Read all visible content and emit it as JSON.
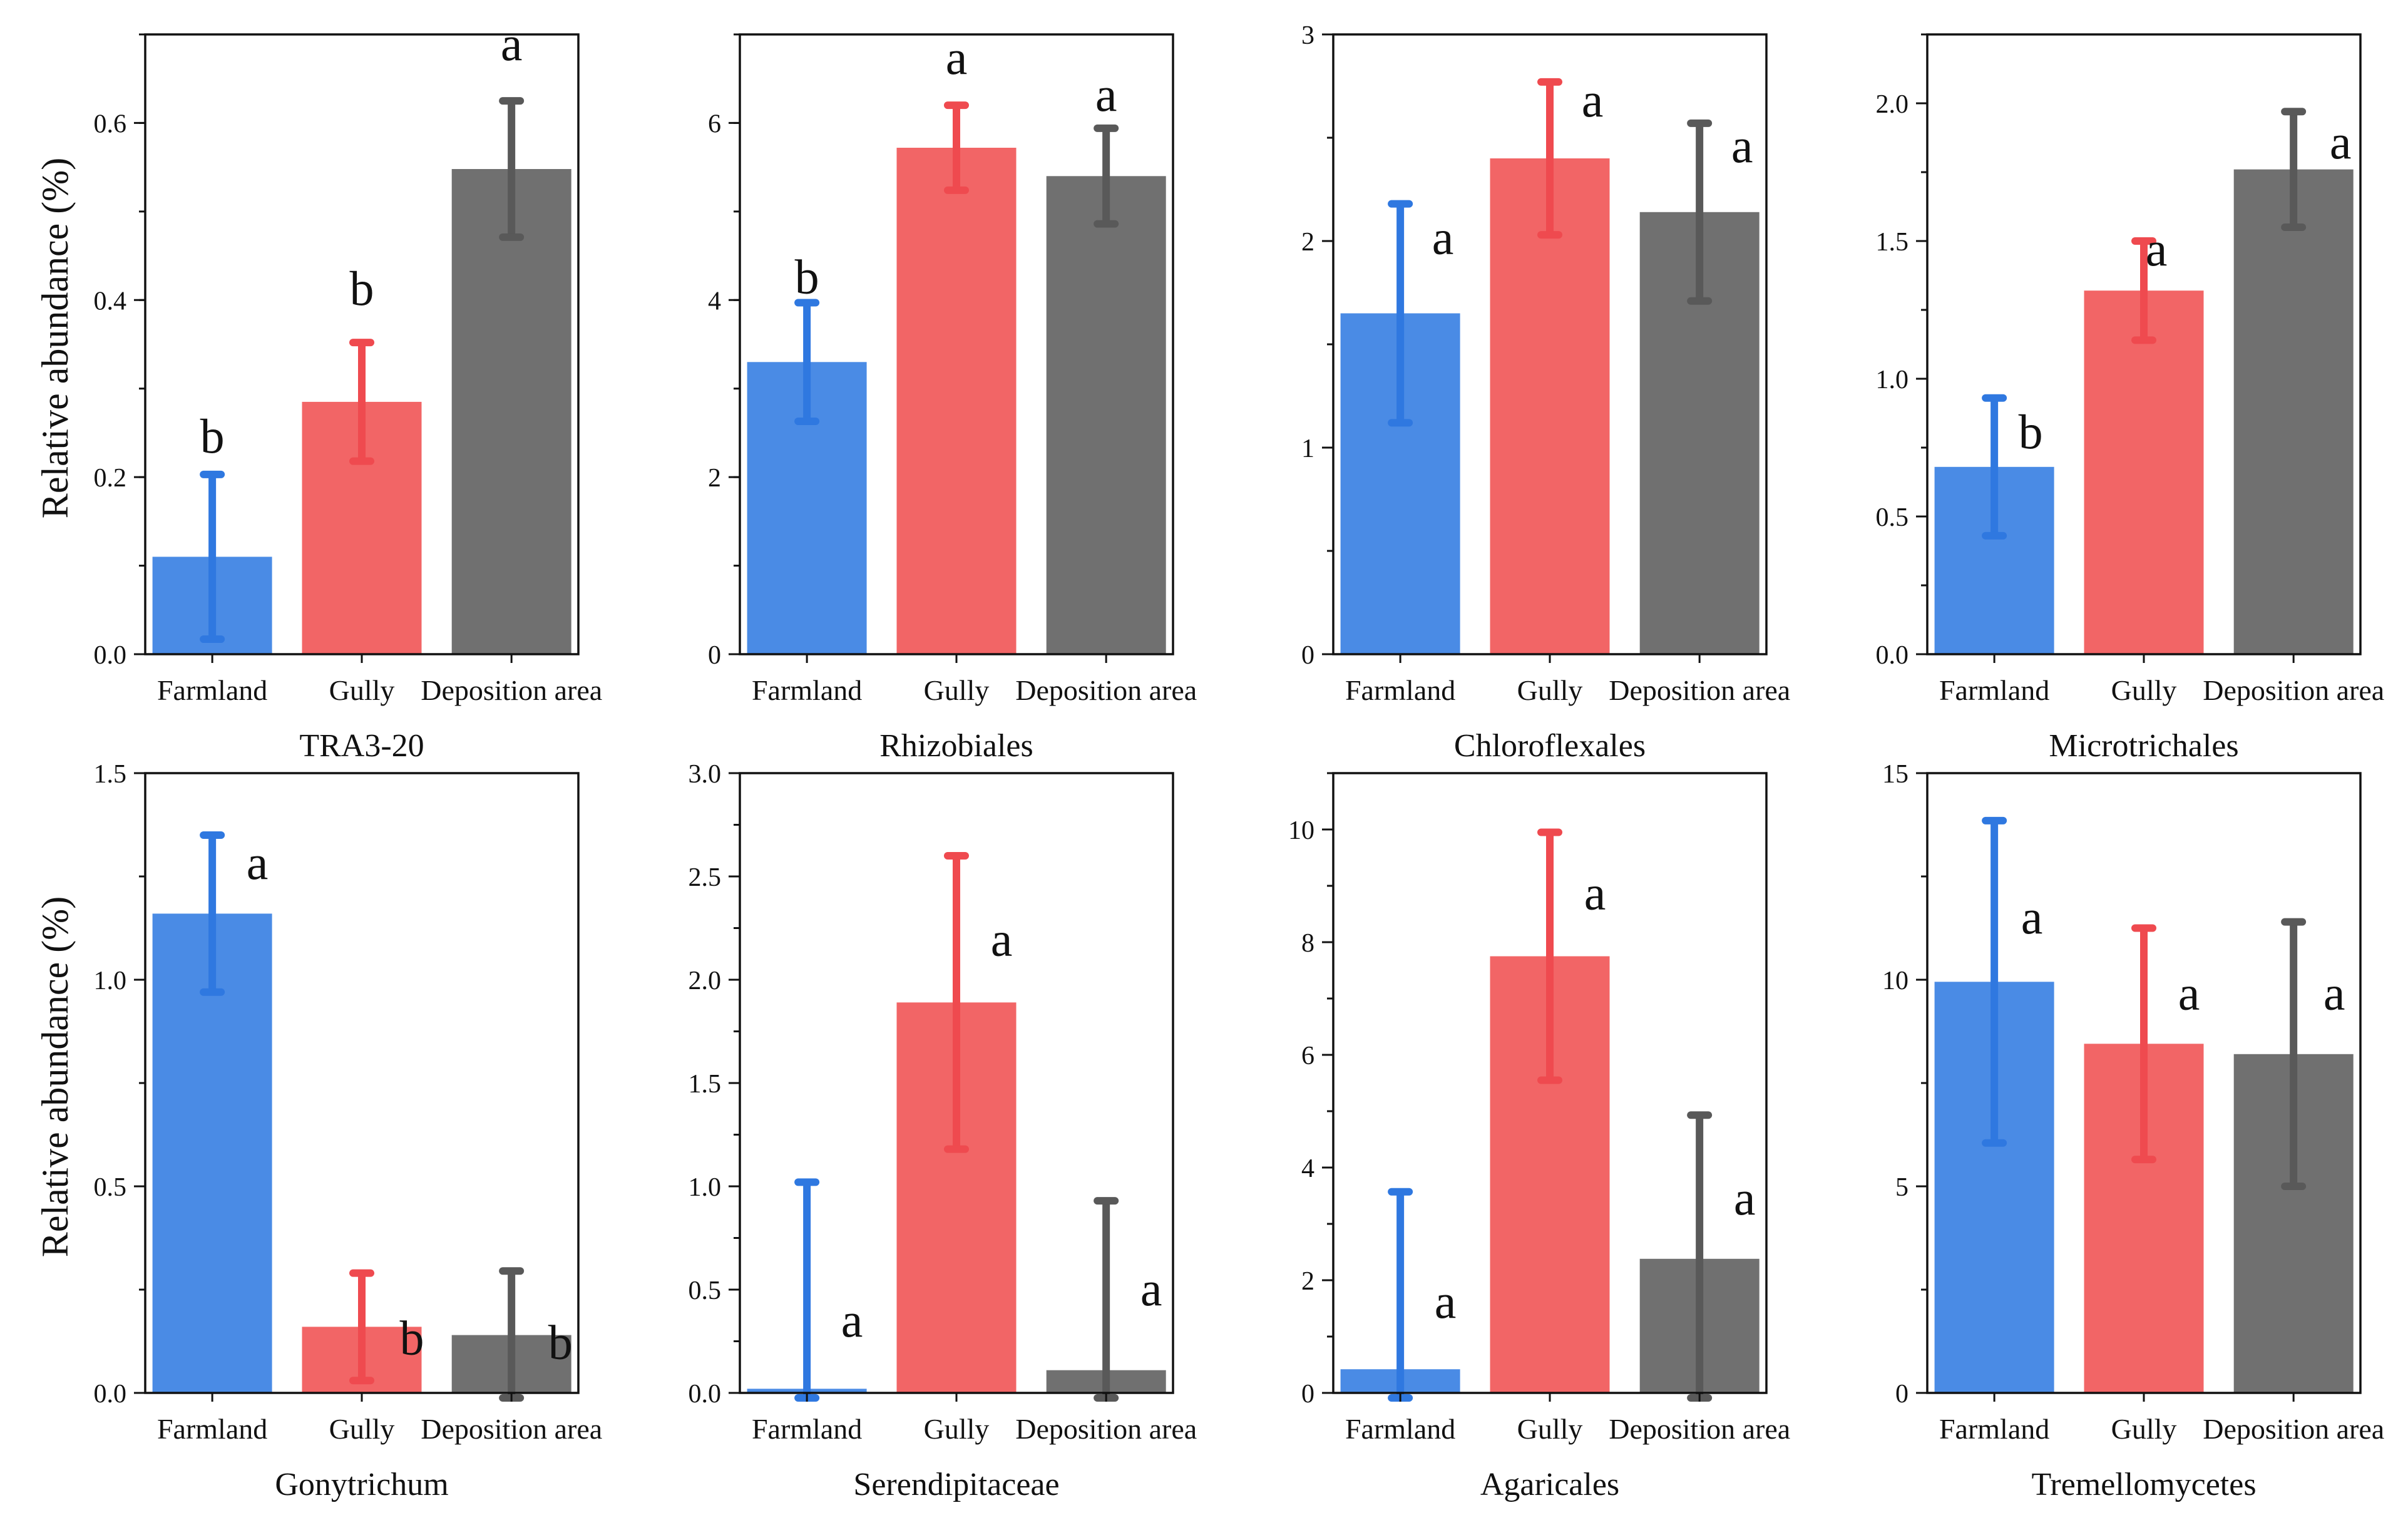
{
  "figure": {
    "y_axis_label": "Relative abundance (%)",
    "colors": {
      "Farmland": "#4a8be5",
      "Gully": "#f26566",
      "Deposition area": "#707070"
    },
    "error_colors": {
      "Farmland": "#2f78e0",
      "Gully": "#ef4a4f",
      "Deposition area": "#595959"
    }
  },
  "chart_data": [
    {
      "type": "bar",
      "title": "TRA3-20",
      "categories": [
        "Farmland",
        "Gully",
        "Deposition area"
      ],
      "values": [
        0.11,
        0.285,
        0.548
      ],
      "errors": [
        0.093,
        0.067,
        0.077
      ],
      "letters": [
        "b",
        "b",
        "a"
      ],
      "ylim": [
        0,
        0.7
      ],
      "yticks": [
        0.0,
        0.2,
        0.4,
        0.6
      ],
      "ytick_labels": [
        "0.0",
        "0.2",
        "0.4",
        "0.6"
      ],
      "minor_step": 0.1
    },
    {
      "type": "bar",
      "title": "Rhizobiales",
      "categories": [
        "Farmland",
        "Gully",
        "Deposition area"
      ],
      "values": [
        3.3,
        5.72,
        5.4
      ],
      "errors": [
        0.67,
        0.48,
        0.54
      ],
      "letters": [
        "b",
        "a",
        "a"
      ],
      "ylim": [
        0,
        7
      ],
      "yticks": [
        0,
        2,
        4,
        6
      ],
      "ytick_labels": [
        "0",
        "2",
        "4",
        "6"
      ],
      "minor_step": 1
    },
    {
      "type": "bar",
      "title": "Chloroflexales",
      "categories": [
        "Farmland",
        "Gully",
        "Deposition area"
      ],
      "values": [
        1.65,
        2.4,
        2.14
      ],
      "errors": [
        0.53,
        0.37,
        0.43
      ],
      "letters": [
        "a",
        "a",
        "a"
      ],
      "ylim": [
        0,
        3
      ],
      "yticks": [
        0,
        1,
        2,
        3
      ],
      "ytick_labels": [
        "0",
        "1",
        "2",
        "3"
      ],
      "minor_step": 0.5
    },
    {
      "type": "bar",
      "title": "Microtrichales",
      "categories": [
        "Farmland",
        "Gully",
        "Deposition area"
      ],
      "values": [
        0.68,
        1.32,
        1.76
      ],
      "errors": [
        0.25,
        0.18,
        0.21
      ],
      "letters": [
        "b",
        "a",
        "a"
      ],
      "ylim": [
        0,
        2.25
      ],
      "yticks": [
        0.0,
        0.5,
        1.0,
        1.5,
        2.0
      ],
      "ytick_labels": [
        "0.0",
        "0.5",
        "1.0",
        "1.5",
        "2.0"
      ],
      "minor_step": 0.25
    },
    {
      "type": "bar",
      "title": "Gonytrichum",
      "categories": [
        "Farmland",
        "Gully",
        "Deposition area"
      ],
      "values": [
        1.16,
        0.16,
        0.14
      ],
      "errors": [
        0.19,
        0.13,
        0.155
      ],
      "letters": [
        "a",
        "b",
        "b"
      ],
      "ylim": [
        0,
        1.5
      ],
      "yticks": [
        0.0,
        0.5,
        1.0,
        1.5
      ],
      "ytick_labels": [
        "0.0",
        "0.5",
        "1.0",
        "1.5"
      ],
      "minor_step": 0.25
    },
    {
      "type": "bar",
      "title": "Serendipitaceae",
      "categories": [
        "Farmland",
        "Gully",
        "Deposition area"
      ],
      "values": [
        0.02,
        1.89,
        0.11
      ],
      "errors": [
        1.0,
        0.71,
        0.82
      ],
      "letters": [
        "a",
        "a",
        "a"
      ],
      "ylim": [
        0,
        3.0
      ],
      "yticks": [
        0.0,
        0.5,
        1.0,
        1.5,
        2.0,
        2.5,
        3.0
      ],
      "ytick_labels": [
        "0.0",
        "0.5",
        "1.0",
        "1.5",
        "2.0",
        "2.5",
        "3.0"
      ],
      "minor_step": 0.25
    },
    {
      "type": "bar",
      "title": "Agaricales",
      "categories": [
        "Farmland",
        "Gully",
        "Deposition area"
      ],
      "values": [
        0.42,
        7.75,
        2.38
      ],
      "errors": [
        3.15,
        2.2,
        2.55
      ],
      "letters": [
        "a",
        "a",
        "a"
      ],
      "ylim": [
        0,
        11
      ],
      "yticks": [
        0,
        2,
        4,
        6,
        8,
        10
      ],
      "ytick_labels": [
        "0",
        "2",
        "4",
        "6",
        "8",
        "10"
      ],
      "minor_step": 1
    },
    {
      "type": "bar",
      "title": "Tremellomycetes",
      "categories": [
        "Farmland",
        "Gully",
        "Deposition area"
      ],
      "values": [
        9.95,
        8.45,
        8.2
      ],
      "errors": [
        3.9,
        2.8,
        3.2
      ],
      "letters": [
        "a",
        "a",
        "a"
      ],
      "ylim": [
        0,
        15
      ],
      "yticks": [
        0,
        5,
        10,
        15
      ],
      "ytick_labels": [
        "0",
        "5",
        "10",
        "15"
      ],
      "minor_step": 2.5
    }
  ]
}
